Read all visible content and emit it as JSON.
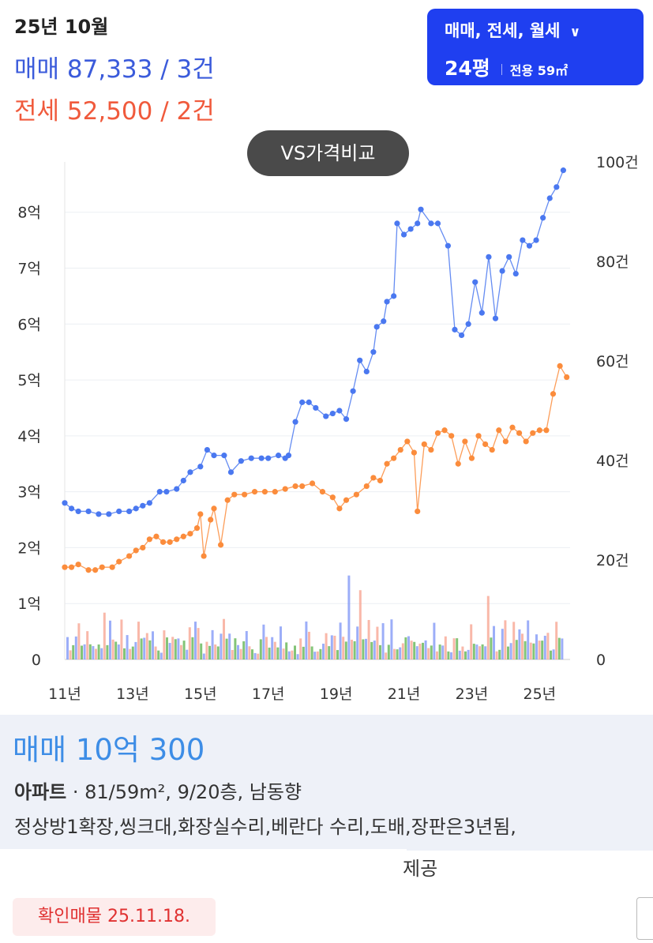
{
  "header": {
    "month": "25년 10월",
    "sale_summary": "매매 87,333 / 3건",
    "jeonse_summary": "전세 52,500 / 2건"
  },
  "filter": {
    "types": "매매, 전세, 월세",
    "size": "24평",
    "exclusive": "전용 59㎡"
  },
  "vs_button": "VS가격비교",
  "chart_data": {
    "type": "line",
    "x_ticks": [
      "11년",
      "13년",
      "15년",
      "17년",
      "19년",
      "21년",
      "23년",
      "25년"
    ],
    "y_left_ticks": [
      "0",
      "1억",
      "2억",
      "3억",
      "4억",
      "5억",
      "6억",
      "7억",
      "8억"
    ],
    "y_right_ticks": [
      "0",
      "20건",
      "40건",
      "60건",
      "80건",
      "100건"
    ],
    "xlim": [
      2011,
      2025.9
    ],
    "ylim_left_eok": [
      0,
      8.9
    ],
    "ylim_right_count": [
      0,
      100
    ],
    "colors": {
      "sale": "#4a78f0",
      "jeonse": "#fb8c3c",
      "sale_bar": "#7b93f5",
      "jeonse_bar": "#f7a08c",
      "monthly_bar": "#5ab04a"
    },
    "series": [
      {
        "key": "sale",
        "x": [
          2011.0,
          2011.2,
          2011.4,
          2011.7,
          2012.0,
          2012.3,
          2012.6,
          2012.9,
          2013.1,
          2013.3,
          2013.5,
          2013.8,
          2014.0,
          2014.3,
          2014.5,
          2014.7,
          2015.0,
          2015.2,
          2015.4,
          2015.7,
          2015.9,
          2016.2,
          2016.5,
          2016.8,
          2017.0,
          2017.3,
          2017.5,
          2017.6,
          2017.8,
          2018.0,
          2018.2,
          2018.4,
          2018.7,
          2018.9,
          2019.1,
          2019.3,
          2019.5,
          2019.7,
          2019.9,
          2020.1,
          2020.2,
          2020.4,
          2020.5,
          2020.7,
          2020.8,
          2021.0,
          2021.2,
          2021.4,
          2021.5,
          2021.8,
          2022.0,
          2022.3,
          2022.5,
          2022.7,
          2022.9,
          2023.1,
          2023.3,
          2023.5,
          2023.7,
          2023.9,
          2024.1,
          2024.3,
          2024.5,
          2024.7,
          2024.9,
          2025.1,
          2025.3,
          2025.5,
          2025.7
        ],
        "values": [
          2.8,
          2.7,
          2.65,
          2.65,
          2.6,
          2.6,
          2.65,
          2.65,
          2.7,
          2.75,
          2.8,
          3.0,
          3.0,
          3.05,
          3.2,
          3.35,
          3.45,
          3.75,
          3.65,
          3.65,
          3.35,
          3.55,
          3.6,
          3.6,
          3.6,
          3.65,
          3.6,
          3.65,
          4.25,
          4.6,
          4.6,
          4.5,
          4.35,
          4.4,
          4.45,
          4.3,
          4.8,
          5.35,
          5.15,
          5.5,
          5.95,
          6.05,
          6.4,
          6.5,
          7.8,
          7.6,
          7.7,
          7.8,
          8.05,
          7.8,
          7.8,
          7.4,
          5.9,
          5.8,
          6.0,
          6.75,
          6.2,
          7.2,
          6.1,
          6.95,
          7.2,
          6.9,
          7.5,
          7.4,
          7.5,
          7.9,
          8.25,
          8.45,
          8.75
        ]
      },
      {
        "key": "jeonse",
        "x": [
          2011.0,
          2011.2,
          2011.4,
          2011.7,
          2011.9,
          2012.1,
          2012.4,
          2012.6,
          2012.9,
          2013.1,
          2013.3,
          2013.5,
          2013.7,
          2013.9,
          2014.1,
          2014.3,
          2014.5,
          2014.7,
          2014.9,
          2015.0,
          2015.1,
          2015.3,
          2015.4,
          2015.6,
          2015.8,
          2016.0,
          2016.3,
          2016.6,
          2016.9,
          2017.2,
          2017.5,
          2017.8,
          2018.0,
          2018.3,
          2018.6,
          2018.9,
          2019.1,
          2019.3,
          2019.6,
          2019.9,
          2020.1,
          2020.3,
          2020.5,
          2020.7,
          2020.9,
          2021.1,
          2021.3,
          2021.4,
          2021.6,
          2021.8,
          2022.0,
          2022.2,
          2022.4,
          2022.6,
          2022.8,
          2023.0,
          2023.2,
          2023.4,
          2023.6,
          2023.8,
          2024.0,
          2024.2,
          2024.4,
          2024.6,
          2024.8,
          2025.0,
          2025.2,
          2025.4,
          2025.6,
          2025.8
        ],
        "values": [
          1.65,
          1.65,
          1.7,
          1.6,
          1.6,
          1.65,
          1.65,
          1.75,
          1.85,
          1.95,
          2.0,
          2.15,
          2.2,
          2.1,
          2.1,
          2.15,
          2.2,
          2.25,
          2.35,
          2.6,
          1.85,
          2.5,
          2.7,
          2.05,
          2.85,
          2.95,
          2.95,
          3.0,
          3.0,
          3.0,
          3.05,
          3.1,
          3.1,
          3.15,
          3.0,
          2.9,
          2.7,
          2.85,
          2.95,
          3.1,
          3.25,
          3.2,
          3.5,
          3.6,
          3.75,
          3.9,
          3.7,
          2.65,
          3.85,
          3.75,
          4.05,
          4.1,
          4.0,
          3.5,
          3.9,
          3.6,
          4.0,
          3.85,
          3.75,
          4.1,
          3.9,
          4.15,
          4.05,
          3.9,
          4.05,
          4.1,
          4.1,
          4.75,
          5.25,
          5.05
        ]
      }
    ]
  },
  "listing": {
    "price": "매매 10억 300",
    "type": "아파트",
    "info": "81/59m², 9/20층, 남동향",
    "description": "정상방1확장,씽크대,화장실수리,베란다 수리,도배,장판은3년됨,",
    "provider": "제공",
    "confirm": "확인매물 25.11.18."
  }
}
